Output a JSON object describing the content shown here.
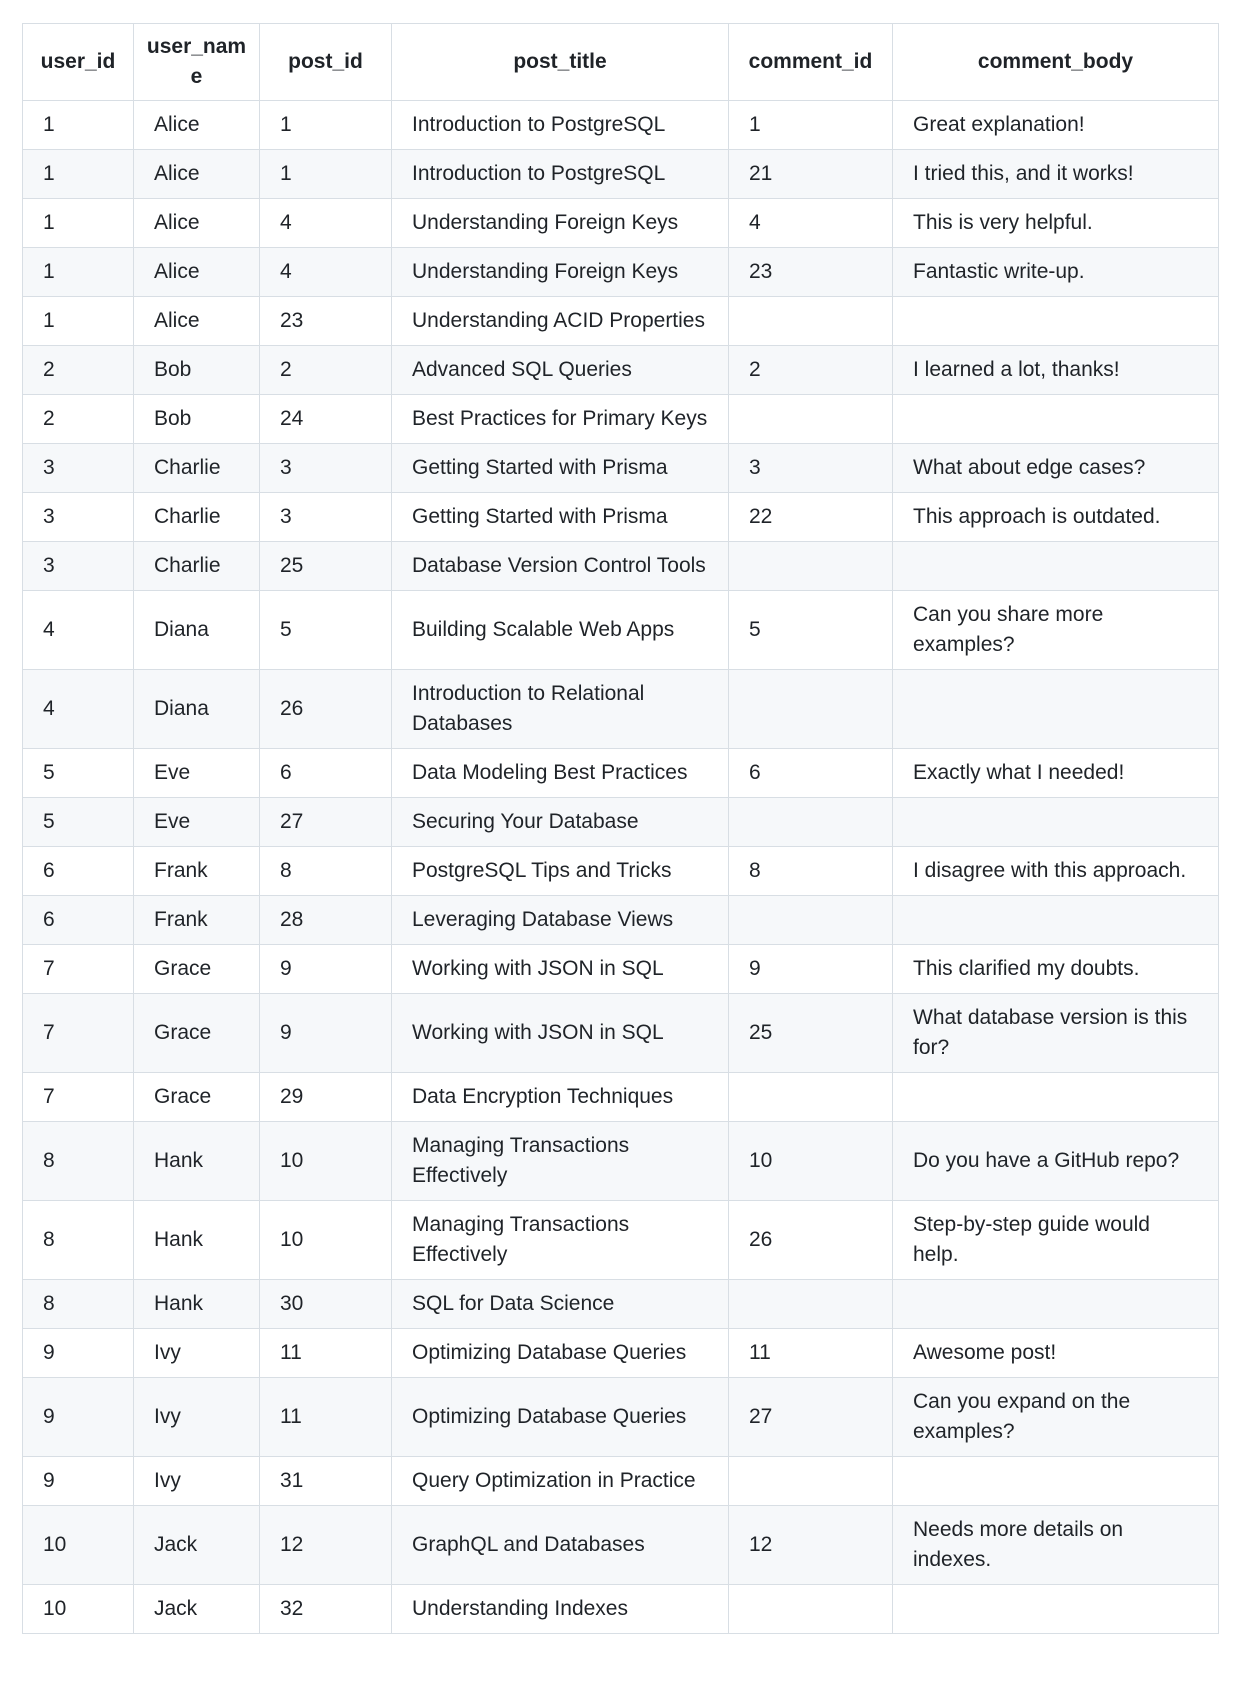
{
  "colors": {
    "page_background": "#ffffff",
    "border": "#d8dee4",
    "row_background": "#ffffff",
    "row_alt_background": "#f6f8fa",
    "text": "#1f2328"
  },
  "table": {
    "columns": [
      {
        "key": "user_id",
        "label": "user_id"
      },
      {
        "key": "user_name",
        "label": "user_name"
      },
      {
        "key": "post_id",
        "label": "post_id"
      },
      {
        "key": "post_title",
        "label": "post_title"
      },
      {
        "key": "comment_id",
        "label": "comment_id"
      },
      {
        "key": "comment_body",
        "label": "comment_body"
      }
    ],
    "rows": [
      [
        "1",
        "Alice",
        "1",
        "Introduction to PostgreSQL",
        "1",
        "Great explanation!"
      ],
      [
        "1",
        "Alice",
        "1",
        "Introduction to PostgreSQL",
        "21",
        "I tried this, and it works!"
      ],
      [
        "1",
        "Alice",
        "4",
        "Understanding Foreign Keys",
        "4",
        "This is very helpful."
      ],
      [
        "1",
        "Alice",
        "4",
        "Understanding Foreign Keys",
        "23",
        "Fantastic write-up."
      ],
      [
        "1",
        "Alice",
        "23",
        "Understanding ACID Properties",
        "",
        ""
      ],
      [
        "2",
        "Bob",
        "2",
        "Advanced SQL Queries",
        "2",
        "I learned a lot, thanks!"
      ],
      [
        "2",
        "Bob",
        "24",
        "Best Practices for Primary Keys",
        "",
        ""
      ],
      [
        "3",
        "Charlie",
        "3",
        "Getting Started with Prisma",
        "3",
        "What about edge cases?"
      ],
      [
        "3",
        "Charlie",
        "3",
        "Getting Started with Prisma",
        "22",
        "This approach is outdated."
      ],
      [
        "3",
        "Charlie",
        "25",
        "Database Version Control Tools",
        "",
        ""
      ],
      [
        "4",
        "Diana",
        "5",
        "Building Scalable Web Apps",
        "5",
        "Can you share more examples?"
      ],
      [
        "4",
        "Diana",
        "26",
        "Introduction to Relational Databases",
        "",
        ""
      ],
      [
        "5",
        "Eve",
        "6",
        "Data Modeling Best Practices",
        "6",
        "Exactly what I needed!"
      ],
      [
        "5",
        "Eve",
        "27",
        "Securing Your Database",
        "",
        ""
      ],
      [
        "6",
        "Frank",
        "8",
        "PostgreSQL Tips and Tricks",
        "8",
        "I disagree with this approach."
      ],
      [
        "6",
        "Frank",
        "28",
        "Leveraging Database Views",
        "",
        ""
      ],
      [
        "7",
        "Grace",
        "9",
        "Working with JSON in SQL",
        "9",
        "This clarified my doubts."
      ],
      [
        "7",
        "Grace",
        "9",
        "Working with JSON in SQL",
        "25",
        "What database version is this for?"
      ],
      [
        "7",
        "Grace",
        "29",
        "Data Encryption Techniques",
        "",
        ""
      ],
      [
        "8",
        "Hank",
        "10",
        "Managing Transactions Effectively",
        "10",
        "Do you have a GitHub repo?"
      ],
      [
        "8",
        "Hank",
        "10",
        "Managing Transactions Effectively",
        "26",
        "Step-by-step guide would help."
      ],
      [
        "8",
        "Hank",
        "30",
        "SQL for Data Science",
        "",
        ""
      ],
      [
        "9",
        "Ivy",
        "11",
        "Optimizing Database Queries",
        "11",
        "Awesome post!"
      ],
      [
        "9",
        "Ivy",
        "11",
        "Optimizing Database Queries",
        "27",
        "Can you expand on the examples?"
      ],
      [
        "9",
        "Ivy",
        "31",
        "Query Optimization in Practice",
        "",
        ""
      ],
      [
        "10",
        "Jack",
        "12",
        "GraphQL and Databases",
        "12",
        "Needs more details on indexes."
      ],
      [
        "10",
        "Jack",
        "32",
        "Understanding Indexes",
        "",
        ""
      ]
    ]
  }
}
